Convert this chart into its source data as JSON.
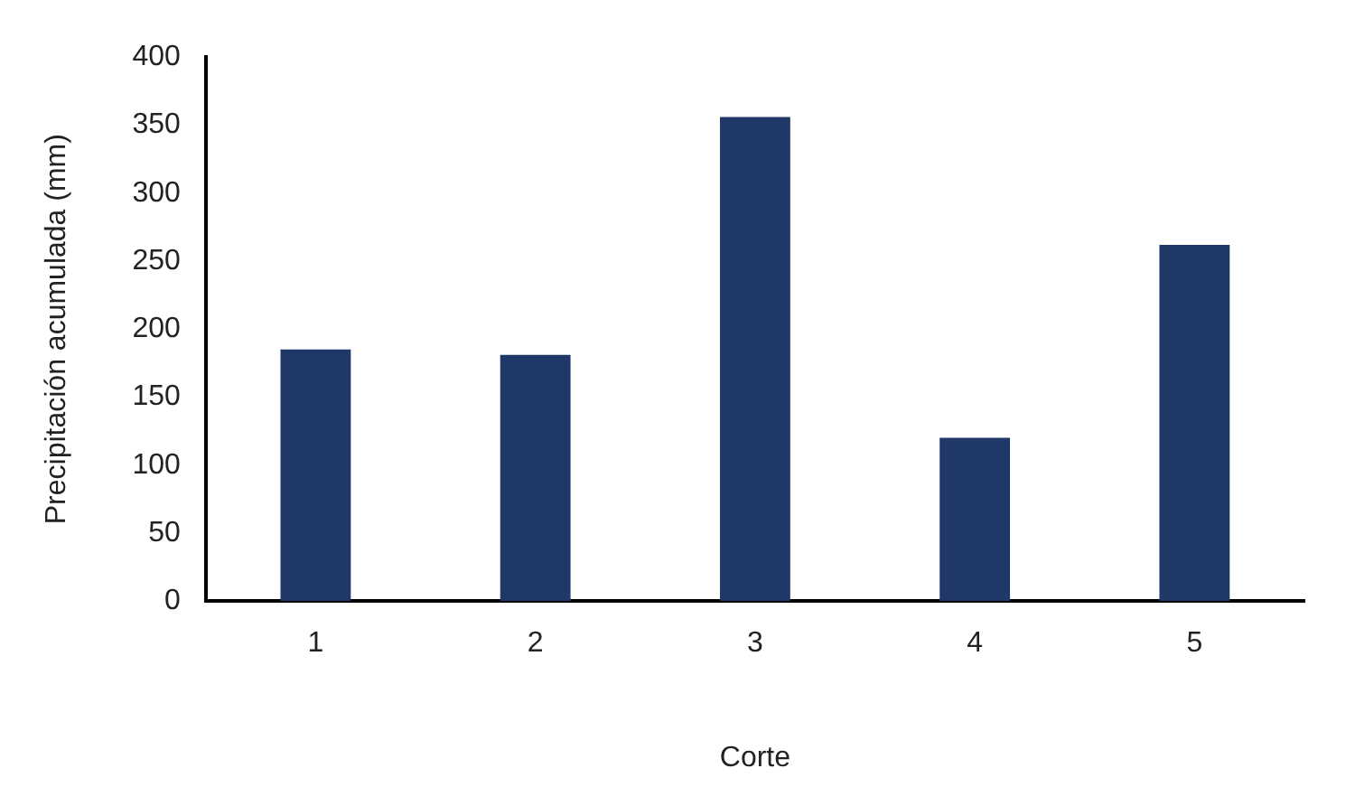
{
  "chart_data": {
    "type": "bar",
    "xlabel": "Corte",
    "ylabel": "Precipitación acumulada (mm)",
    "categories": [
      "1",
      "2",
      "3",
      "4",
      "5"
    ],
    "values": [
      185,
      181,
      356,
      120,
      262
    ],
    "color": "#1f3868",
    "ylim": [
      0,
      400
    ],
    "yticks": [
      0,
      50,
      100,
      150,
      200,
      250,
      300,
      350,
      400
    ],
    "grid": false,
    "legend": false
  }
}
